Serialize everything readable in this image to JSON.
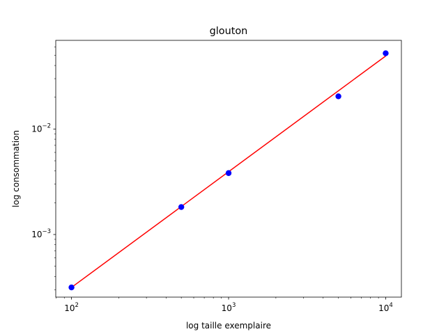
{
  "chart_data": {
    "type": "scatter",
    "title": "glouton",
    "xlabel": "log taille exemplaire",
    "ylabel": "log consommation",
    "xscale": "log",
    "yscale": "log",
    "xlim": [
      79.4,
      12590
    ],
    "ylim": [
      0.000255,
      0.0692
    ],
    "grid": false,
    "x_ticks": [
      {
        "value": 100,
        "base": "10",
        "exp": "2"
      },
      {
        "value": 1000,
        "base": "10",
        "exp": "3"
      },
      {
        "value": 10000,
        "base": "10",
        "exp": "4"
      }
    ],
    "y_ticks": [
      {
        "value": 0.001,
        "base": "10",
        "exp": "−3"
      },
      {
        "value": 0.01,
        "base": "10",
        "exp": "−2"
      }
    ],
    "series": [
      {
        "kind": "scatter",
        "color": "#0000ff",
        "x": [
          100,
          500,
          1000,
          5000,
          10000
        ],
        "y": [
          0.000315,
          0.00182,
          0.00382,
          0.0204,
          0.0522
        ]
      },
      {
        "kind": "line",
        "color": "#ff0000",
        "x": [
          100,
          10000
        ],
        "y": [
          0.000315,
          0.0492
        ]
      }
    ]
  }
}
